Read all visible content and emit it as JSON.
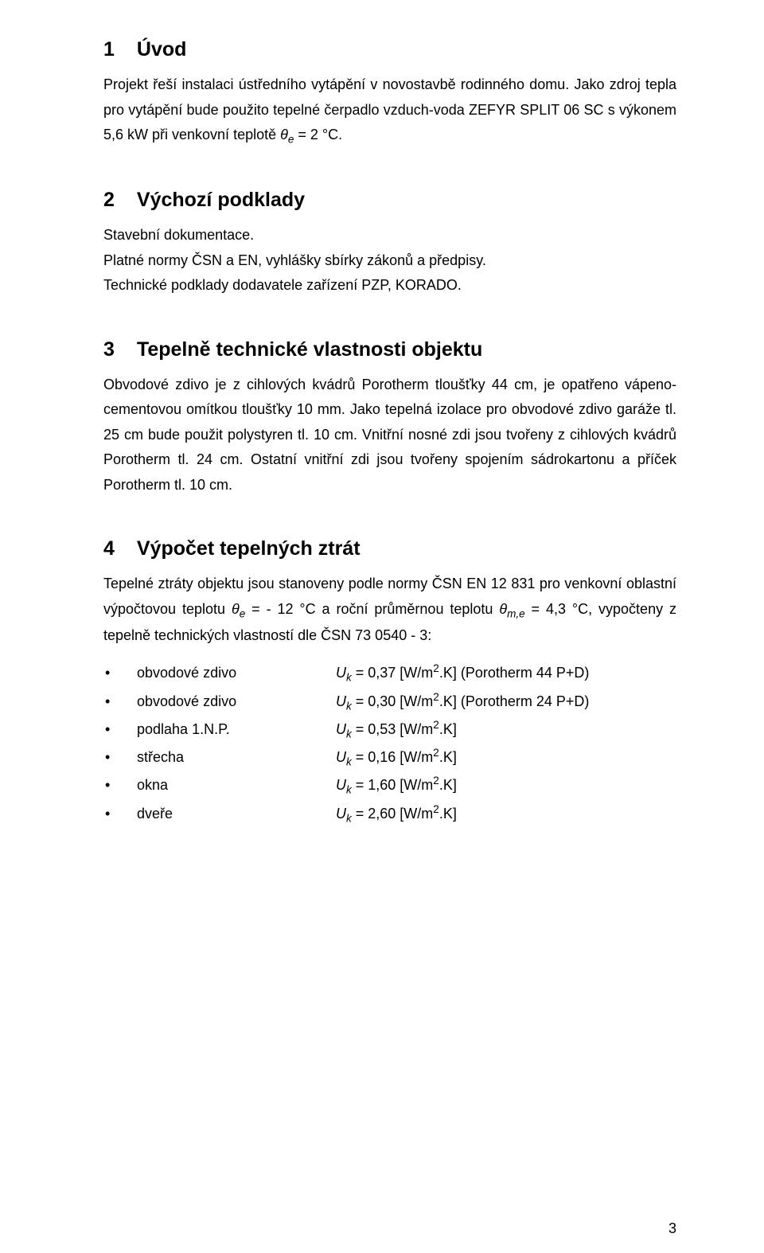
{
  "page_number": "3",
  "sections": {
    "s1": {
      "num": "1",
      "title": "Úvod",
      "p1_a": "Projekt řeší instalaci ústředního vytápění v novostavbě rodinného domu. Jako zdroj tepla pro vytápění bude použito tepelné čerpadlo vzduch-voda ZEFYR SPLIT 06 SC s výkonem 5,6 kW při venkovní teplotě ",
      "p1_theta": "θ",
      "p1_sub": "e",
      "p1_b": " = 2 °C."
    },
    "s2": {
      "num": "2",
      "title": "Výchozí podklady",
      "p1": "Stavební dokumentace.",
      "p2": "Platné normy ČSN a EN, vyhlášky sbírky zákonů a předpisy.",
      "p3": "Technické podklady dodavatele zařízení PZP, KORADO."
    },
    "s3": {
      "num": "3",
      "title": "Tepelně technické vlastnosti objektu",
      "p1": "Obvodové zdivo je z cihlových kvádrů Porotherm tloušťky 44 cm, je opatřeno vápeno-cementovou omítkou tloušťky 10 mm. Jako tepelná izolace pro obvodové zdivo garáže tl. 25 cm bude použit polystyren tl. 10 cm. Vnitřní nosné zdi jsou tvořeny z cihlových kvádrů Porotherm tl. 24 cm. Ostatní vnitřní zdi jsou tvořeny spojením sádrokartonu a příček Porotherm tl. 10 cm."
    },
    "s4": {
      "num": "4",
      "title": "Výpočet tepelných ztrát",
      "p1_a": "Tepelné ztráty objektu jsou stanoveny podle normy ČSN EN 12 831 pro venkovní oblastní výpočtovou teplotu ",
      "p1_t1": "θ",
      "p1_s1": "e",
      "p1_b": " = - 12 °C a roční průměrnou teplotu ",
      "p1_t2": "θ",
      "p1_s2": "m,e",
      "p1_c": " = 4,3 °C, vypočteny z tepelně technických vlastností dle ČSN 73 0540 - 3:",
      "items": [
        {
          "label": "obvodové zdivo",
          "val": "0,37",
          "extra": " (Porotherm 44 P+D)"
        },
        {
          "label": "obvodové zdivo",
          "val": "0,30",
          "extra": " (Porotherm 24 P+D)"
        },
        {
          "label": "podlaha 1.N.P.",
          "val": "0,53",
          "extra": ""
        },
        {
          "label": "střecha",
          "val": "0,16",
          "extra": ""
        },
        {
          "label": "okna",
          "val": "1,60",
          "extra": ""
        },
        {
          "label": "dveře",
          "val": "2,60",
          "extra": ""
        }
      ],
      "sym_U": "U",
      "sym_k": "k",
      "eq_pre": " = ",
      "unit_a": " [W/m",
      "unit_sup": "2",
      "unit_b": ".K]"
    }
  }
}
